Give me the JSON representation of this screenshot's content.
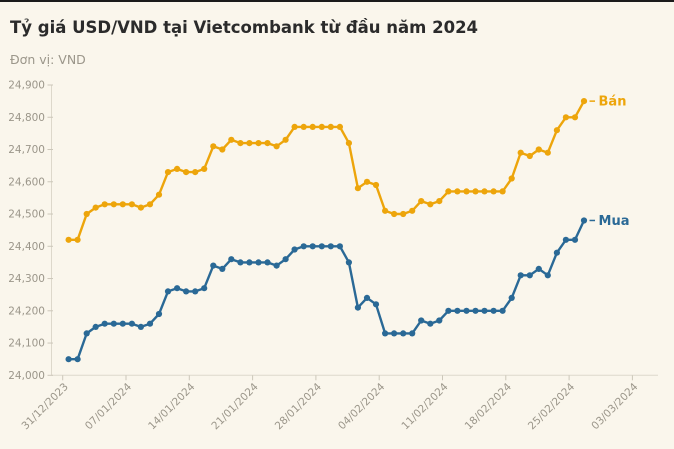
{
  "page": {
    "background_color": "#faf6ec",
    "top_rule_color": "#1b1b1b"
  },
  "header": {
    "title": "Tỷ giá USD/VND tại Vietcombank từ đầu năm 2024",
    "unit_label": "Đơn vị: VND"
  },
  "chart_data": {
    "type": "line",
    "title": "Tỷ giá USD/VND tại Vietcombank từ đầu năm 2024",
    "unit": "VND",
    "grid": "off",
    "legend_position": "line-end",
    "y_axis": {
      "min": 24000,
      "max": 24900,
      "step": 100,
      "tick_labels": [
        "24,000",
        "24,100",
        "24,200",
        "24,300",
        "24,400",
        "24,500",
        "24,600",
        "24,700",
        "24,800",
        "24,900"
      ]
    },
    "x_axis": {
      "tick_labels": [
        "31/12/2023",
        "07/01/2024",
        "14/01/2024",
        "21/01/2024",
        "28/01/2024",
        "04/02/2024",
        "11/02/2024",
        "18/02/2024",
        "25/02/2024",
        "03/03/2024"
      ],
      "tick_interval_days": 7
    },
    "x": [
      "01/01/2024",
      "02/01/2024",
      "03/01/2024",
      "04/01/2024",
      "05/01/2024",
      "06/01/2024",
      "07/01/2024",
      "08/01/2024",
      "09/01/2024",
      "10/01/2024",
      "11/01/2024",
      "12/01/2024",
      "13/01/2024",
      "14/01/2024",
      "15/01/2024",
      "16/01/2024",
      "17/01/2024",
      "18/01/2024",
      "19/01/2024",
      "20/01/2024",
      "21/01/2024",
      "22/01/2024",
      "23/01/2024",
      "24/01/2024",
      "25/01/2024",
      "26/01/2024",
      "27/01/2024",
      "28/01/2024",
      "29/01/2024",
      "30/01/2024",
      "31/01/2024",
      "01/02/2024",
      "02/02/2024",
      "03/02/2024",
      "04/02/2024",
      "05/02/2024",
      "06/02/2024",
      "07/02/2024",
      "08/02/2024",
      "09/02/2024",
      "10/02/2024",
      "11/02/2024",
      "12/02/2024",
      "13/02/2024",
      "14/02/2024",
      "15/02/2024",
      "16/02/2024",
      "17/02/2024",
      "18/02/2024",
      "19/02/2024",
      "20/02/2024",
      "21/02/2024",
      "22/02/2024",
      "23/02/2024",
      "24/02/2024",
      "25/02/2024",
      "26/02/2024",
      "27/02/2024"
    ],
    "series": [
      {
        "name": "Bán",
        "color": "#eda50b",
        "values": [
          24420,
          24420,
          24500,
          24520,
          24530,
          24530,
          24530,
          24530,
          24520,
          24530,
          24560,
          24630,
          24640,
          24630,
          24630,
          24640,
          24710,
          24700,
          24730,
          24720,
          24720,
          24720,
          24720,
          24710,
          24730,
          24770,
          24770,
          24770,
          24770,
          24770,
          24770,
          24720,
          24580,
          24600,
          24590,
          24510,
          24500,
          24500,
          24510,
          24540,
          24530,
          24540,
          24570,
          24570,
          24570,
          24570,
          24570,
          24570,
          24570,
          24610,
          24690,
          24680,
          24700,
          24690,
          24760,
          24800,
          24800,
          24850
        ]
      },
      {
        "name": "Mua",
        "color": "#2a6996",
        "values": [
          24050,
          24050,
          24130,
          24150,
          24160,
          24160,
          24160,
          24160,
          24150,
          24160,
          24190,
          24260,
          24270,
          24260,
          24260,
          24270,
          24340,
          24330,
          24360,
          24350,
          24350,
          24350,
          24350,
          24340,
          24360,
          24390,
          24400,
          24400,
          24400,
          24400,
          24400,
          24350,
          24210,
          24240,
          24220,
          24130,
          24130,
          24130,
          24130,
          24170,
          24160,
          24170,
          24200,
          24200,
          24200,
          24200,
          24200,
          24200,
          24200,
          24240,
          24310,
          24310,
          24330,
          24310,
          24380,
          24420,
          24420,
          24480
        ]
      }
    ]
  }
}
